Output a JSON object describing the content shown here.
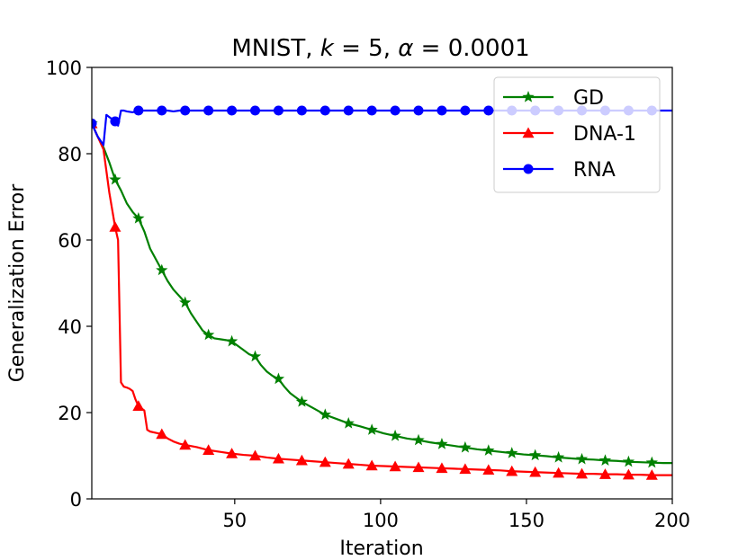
{
  "chart_data": {
    "type": "line",
    "title_parts": {
      "prefix": "MNIST, ",
      "k_sym": "k",
      "k_rest": " = 5, ",
      "alpha_sym": "α",
      "alpha_rest": " = 0.0001"
    },
    "xlabel": "Iteration",
    "ylabel": "Generalization Error",
    "xlim": [
      1,
      200
    ],
    "ylim": [
      0,
      100
    ],
    "xticks": [
      50,
      100,
      150,
      200
    ],
    "yticks": [
      0,
      20,
      40,
      60,
      80,
      100
    ],
    "grid": false,
    "legend_position": "top-right",
    "series": [
      {
        "name": "GD",
        "color": "#008000",
        "marker": "star",
        "marker_every": 8,
        "marker_start": 1,
        "x": [
          1,
          3,
          5,
          7,
          9,
          11,
          13,
          15,
          17,
          19,
          21,
          23,
          25,
          27,
          29,
          31,
          33,
          35,
          37,
          39,
          41,
          43,
          45,
          47,
          49,
          51,
          53,
          55,
          57,
          59,
          61,
          63,
          65,
          67,
          69,
          71,
          73,
          77,
          81,
          85,
          89,
          93,
          97,
          101,
          105,
          109,
          113,
          117,
          121,
          125,
          129,
          133,
          137,
          141,
          145,
          149,
          153,
          157,
          161,
          165,
          169,
          173,
          177,
          181,
          185,
          189,
          193,
          197,
          200
        ],
        "y": [
          87,
          84,
          81.5,
          78,
          74,
          71.5,
          68.5,
          66.5,
          65,
          62,
          58,
          55.5,
          53,
          50.5,
          48.5,
          47,
          45.5,
          43,
          41,
          39,
          38,
          37.2,
          37,
          36.8,
          36.5,
          35.5,
          34.5,
          33.5,
          33,
          31,
          29.5,
          28.5,
          27.8,
          26,
          24.5,
          23.5,
          22.5,
          21,
          19.5,
          18.5,
          17.5,
          16.8,
          16,
          15.2,
          14.6,
          14,
          13.6,
          13.1,
          12.7,
          12.3,
          11.9,
          11.5,
          11.2,
          10.9,
          10.6,
          10.3,
          10.1,
          9.9,
          9.6,
          9.4,
          9.2,
          9.1,
          8.9,
          8.8,
          8.6,
          8.5,
          8.4,
          8.3,
          8.3
        ]
      },
      {
        "name": "DNA-1",
        "color": "#ff0000",
        "marker": "triangle",
        "marker_every": 8,
        "marker_start": 1,
        "x": [
          1,
          3,
          5,
          6,
          7,
          8,
          9,
          10,
          11,
          12,
          13,
          14,
          15,
          16,
          17,
          18,
          19,
          20,
          21,
          23,
          25,
          27,
          29,
          31,
          33,
          37,
          41,
          45,
          49,
          53,
          57,
          61,
          65,
          69,
          73,
          77,
          81,
          85,
          89,
          93,
          97,
          101,
          105,
          109,
          113,
          117,
          121,
          125,
          129,
          133,
          137,
          141,
          145,
          149,
          153,
          157,
          161,
          165,
          169,
          173,
          177,
          181,
          185,
          189,
          193,
          197,
          200
        ],
        "y": [
          87,
          84,
          81,
          76,
          71,
          67,
          63,
          60,
          27,
          26,
          25.8,
          25.5,
          25,
          23,
          21.5,
          21,
          20.5,
          16,
          15.6,
          15.3,
          15,
          14,
          13.3,
          12.8,
          12.5,
          12,
          11.3,
          10.9,
          10.5,
          10.2,
          10,
          9.6,
          9.3,
          9.1,
          8.9,
          8.7,
          8.5,
          8.3,
          8.1,
          7.9,
          7.7,
          7.6,
          7.5,
          7.4,
          7.3,
          7.2,
          7.1,
          7,
          6.9,
          6.8,
          6.7,
          6.6,
          6.4,
          6.3,
          6.2,
          6.1,
          6,
          5.9,
          5.8,
          5.8,
          5.7,
          5.7,
          5.6,
          5.6,
          5.5,
          5.5,
          5.5
        ]
      },
      {
        "name": "RNA",
        "color": "#0000ff",
        "marker": "circle",
        "marker_every": 8,
        "marker_start": 1,
        "x": [
          1,
          3,
          5,
          6,
          7,
          8,
          9,
          10,
          11,
          12,
          13,
          14,
          15,
          16,
          17,
          19,
          21,
          23,
          25,
          27,
          29,
          31,
          33,
          35,
          37,
          41,
          45,
          49,
          53,
          57,
          61,
          65,
          69,
          73,
          77,
          81,
          85,
          89,
          93,
          97,
          101,
          105,
          109,
          113,
          117,
          121,
          125,
          129,
          133,
          137,
          141,
          145,
          149,
          153,
          157,
          161,
          165,
          169,
          173,
          177,
          181,
          185,
          189,
          193,
          197,
          200
        ],
        "y": [
          87,
          84,
          82,
          89,
          88.5,
          88,
          87.5,
          86.5,
          90,
          90,
          89.8,
          89.7,
          89.6,
          89.8,
          90,
          90,
          90,
          90,
          90,
          90,
          89.8,
          90,
          90,
          90,
          90,
          90,
          90,
          90,
          90,
          90,
          90,
          90,
          90,
          90,
          90,
          90,
          90,
          90,
          90,
          90,
          90,
          90,
          90,
          90,
          90,
          90,
          90,
          90,
          90,
          90,
          90,
          90,
          90,
          90,
          90,
          90,
          90,
          90,
          90,
          90,
          90,
          90,
          90,
          90,
          90,
          90
        ]
      }
    ]
  }
}
